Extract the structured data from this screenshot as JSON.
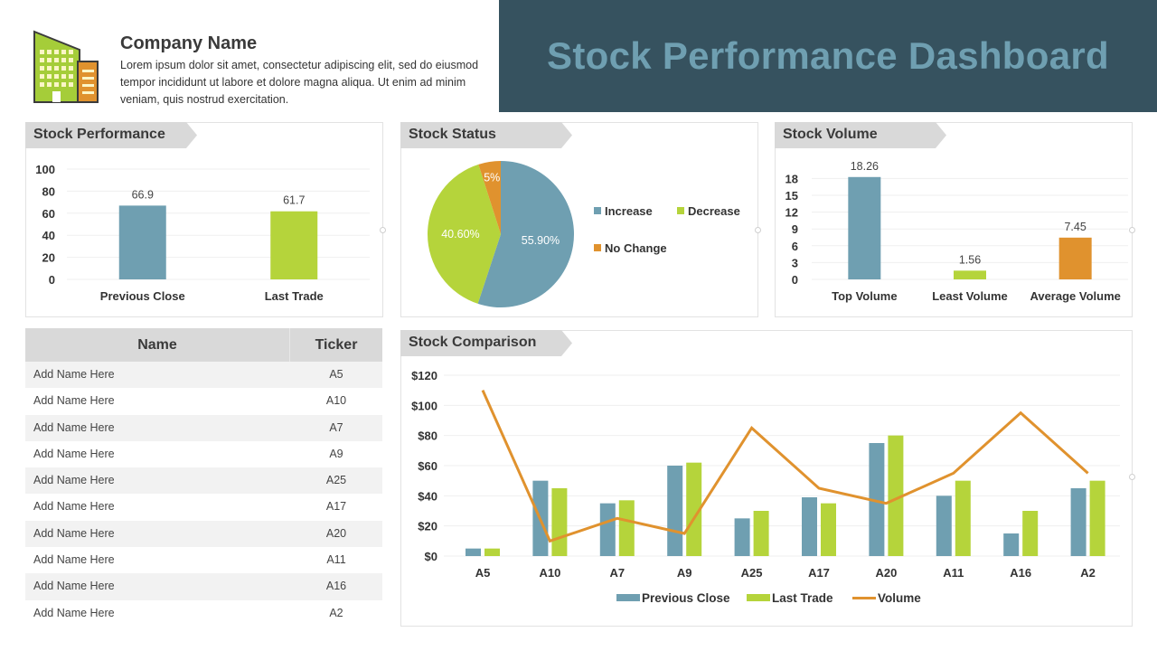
{
  "header": {
    "company_name": "Company Name",
    "company_description": "Lorem ipsum dolor sit amet, consectetur adipiscing elit, sed do eiusmod tempor incididunt ut labore et dolore magna aliqua. Ut enim ad minim veniam, quis nostrud exercitation.",
    "logo_icon": "building-icon",
    "title": "Stock Performance Dashboard"
  },
  "colors": {
    "banner_bg": "#36525f",
    "banner_text": "#6f9fb1",
    "blue": "#6f9fb1",
    "green": "#b5d43b",
    "orange": "#e0922e",
    "tab_bg": "#d9d9d9"
  },
  "panels": {
    "stock_performance": {
      "title": "Stock Performance"
    },
    "stock_status": {
      "title": "Stock Status"
    },
    "stock_volume": {
      "title": "Stock Volume"
    },
    "stock_comparison": {
      "title": "Stock Comparison"
    }
  },
  "table": {
    "headers": {
      "name": "Name",
      "ticker": "Ticker"
    },
    "rows": [
      {
        "name": "Add Name Here",
        "ticker": "A5"
      },
      {
        "name": "Add Name Here",
        "ticker": "A10"
      },
      {
        "name": "Add Name Here",
        "ticker": "A7"
      },
      {
        "name": "Add Name Here",
        "ticker": "A9"
      },
      {
        "name": "Add Name Here",
        "ticker": "A25"
      },
      {
        "name": "Add Name Here",
        "ticker": "A17"
      },
      {
        "name": "Add Name Here",
        "ticker": "A20"
      },
      {
        "name": "Add Name Here",
        "ticker": "A11"
      },
      {
        "name": "Add Name Here",
        "ticker": "A16"
      },
      {
        "name": "Add Name Here",
        "ticker": "A2"
      }
    ]
  },
  "chart_data": [
    {
      "id": "stock_performance",
      "type": "bar",
      "title": "Stock Performance",
      "categories": [
        "Previous Close",
        "Last Trade"
      ],
      "values": [
        66.9,
        61.7
      ],
      "value_labels": [
        "66.9",
        "61.7"
      ],
      "colors": [
        "#6f9fb1",
        "#b5d43b"
      ],
      "yticks": [
        0,
        20,
        40,
        60,
        80,
        100
      ],
      "ylim": [
        0,
        100
      ],
      "grid": true
    },
    {
      "id": "stock_status",
      "type": "pie",
      "title": "Stock Status",
      "labels": [
        "Increase",
        "Decrease",
        "No Change"
      ],
      "values": [
        55.9,
        40.6,
        5
      ],
      "value_labels": [
        "55.90%",
        "40.60%",
        "5%"
      ],
      "colors": [
        "#6f9fb1",
        "#b5d43b",
        "#e0922e"
      ],
      "legend_position": "right"
    },
    {
      "id": "stock_volume",
      "type": "bar",
      "title": "Stock Volume",
      "categories": [
        "Top Volume",
        "Least Volume",
        "Average Volume"
      ],
      "values": [
        18.26,
        1.56,
        7.45
      ],
      "value_labels": [
        "18.26",
        "1.56",
        "7.45"
      ],
      "colors": [
        "#6f9fb1",
        "#b5d43b",
        "#e0922e"
      ],
      "yticks": [
        0,
        3,
        6,
        9,
        12,
        15,
        18
      ],
      "ylim": [
        0,
        20
      ],
      "grid": true
    },
    {
      "id": "stock_comparison",
      "type": "bar",
      "title": "Stock Comparison",
      "categories": [
        "A5",
        "A10",
        "A7",
        "A9",
        "A25",
        "A17",
        "A20",
        "A11",
        "A16",
        "A2"
      ],
      "series": [
        {
          "name": "Previous Close",
          "type": "bar",
          "color": "#6f9fb1",
          "values": [
            5,
            50,
            35,
            60,
            25,
            39,
            75,
            40,
            15,
            45
          ]
        },
        {
          "name": "Last Trade",
          "type": "bar",
          "color": "#b5d43b",
          "values": [
            5,
            45,
            37,
            62,
            30,
            35,
            80,
            50,
            30,
            50
          ]
        },
        {
          "name": "Volume",
          "type": "line",
          "color": "#e0922e",
          "values": [
            110,
            10,
            25,
            15,
            85,
            45,
            35,
            55,
            95,
            55
          ]
        }
      ],
      "yticks": [
        "$0",
        "$20",
        "$40",
        "$60",
        "$80",
        "$100",
        "$120"
      ],
      "ylim": [
        0,
        120
      ],
      "legend_position": "bottom",
      "grid": true
    }
  ]
}
